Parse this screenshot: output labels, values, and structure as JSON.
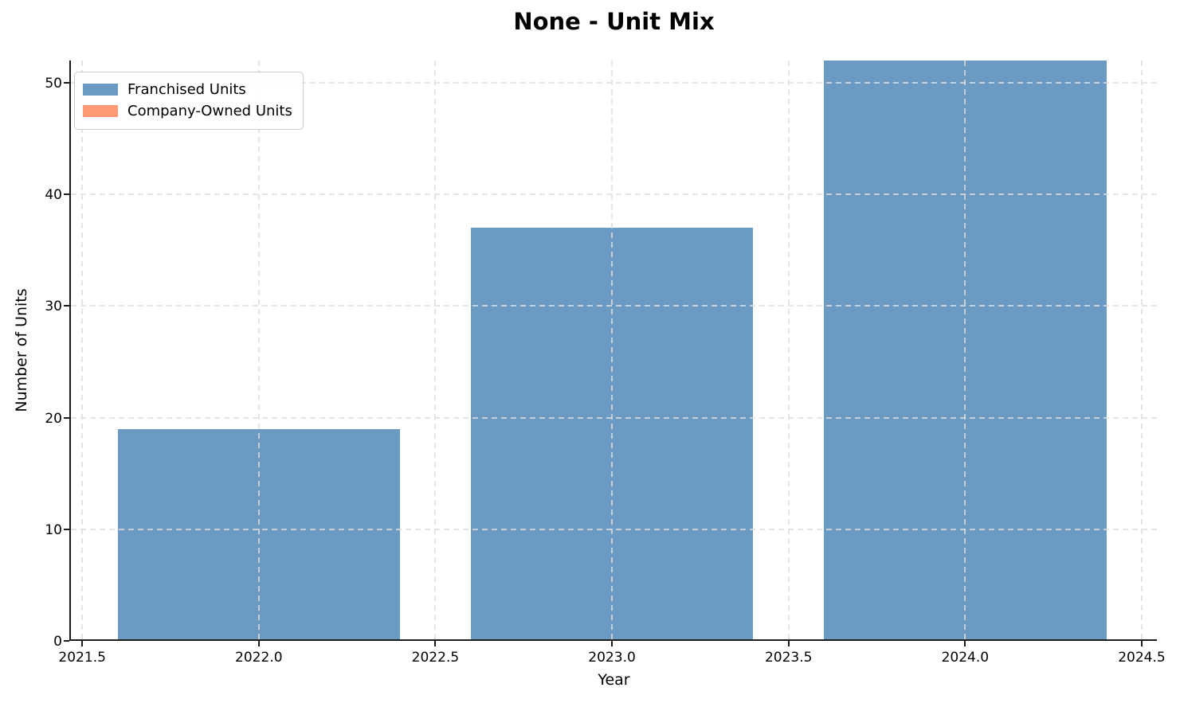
{
  "chart_data": {
    "type": "bar",
    "title": "None - Unit Mix",
    "xlabel": "Year",
    "ylabel": "Number of Units",
    "categories": [
      2022,
      2023,
      2024
    ],
    "series": [
      {
        "name": "Franchised Units",
        "color": "#6b9bc3",
        "values": [
          19,
          37,
          52
        ]
      },
      {
        "name": "Company-Owned Units",
        "color": "#ff9973",
        "values": [
          0,
          0,
          0
        ]
      }
    ],
    "bar_width": 0.8,
    "stacked": true,
    "xlim": [
      2021.468,
      2024.543
    ],
    "ylim": [
      0,
      52
    ],
    "x_ticks": [
      2021.5,
      2022.0,
      2022.5,
      2023.0,
      2023.5,
      2024.0,
      2024.5
    ],
    "x_tick_labels": [
      "2021.5",
      "2022.0",
      "2022.5",
      "2023.0",
      "2023.5",
      "2024.0",
      "2024.5"
    ],
    "y_ticks": [
      0,
      10,
      20,
      30,
      40,
      50
    ],
    "y_tick_labels": [
      "0",
      "10",
      "20",
      "30",
      "40",
      "50"
    ],
    "grid": "dashed-both-axes-above-bars",
    "legend_position": "upper-left",
    "colors": {
      "franchised": "#6b9bc3",
      "company_owned": "#ff9973",
      "grid": "#dedede",
      "spine": "#1c1c1c",
      "background": "#ffffff"
    }
  }
}
